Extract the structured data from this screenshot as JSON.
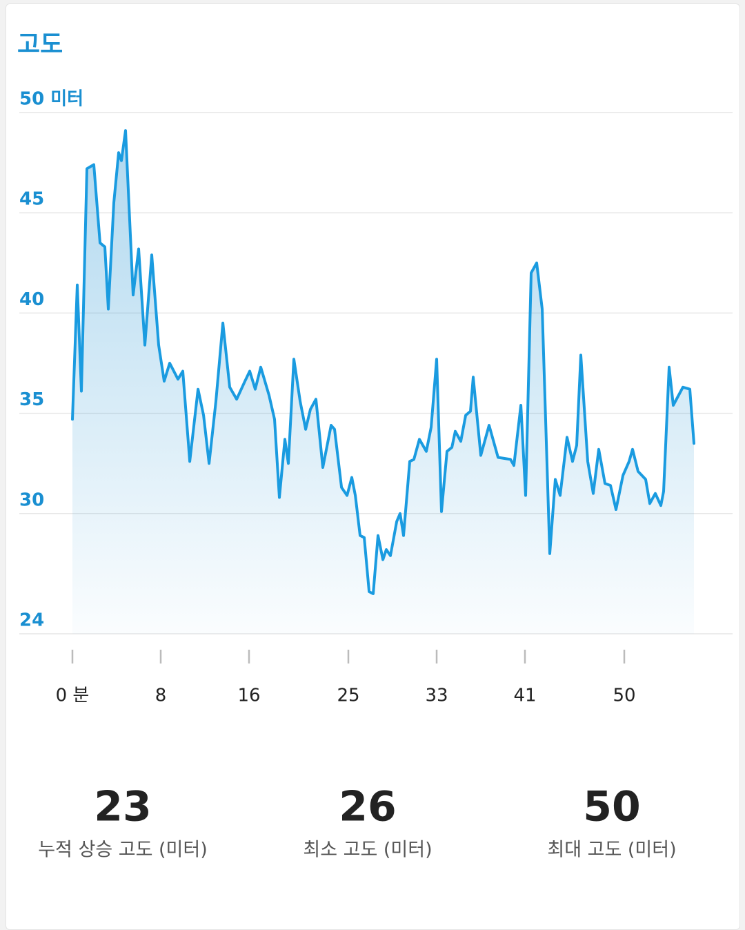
{
  "chart_data": {
    "type": "area",
    "title": "고도",
    "x": [
      0,
      0.44,
      0.81,
      1.31,
      1.94,
      2.5,
      2.94,
      3.25,
      3.75,
      4.19,
      4.44,
      4.81,
      5.5,
      6.0,
      6.56,
      7.19,
      7.81,
      8.31,
      8.81,
      9.56,
      10.0,
      10.63,
      11.38,
      11.88,
      12.38,
      13.0,
      13.63,
      14.25,
      14.88,
      15.63,
      16.06,
      16.56,
      17.06,
      17.81,
      18.31,
      18.75,
      19.25,
      19.56,
      20.06,
      20.63,
      21.13,
      21.56,
      22.06,
      22.69,
      23.44,
      23.75,
      24.38,
      24.88,
      25.31,
      25.63,
      26.06,
      26.44,
      26.88,
      27.25,
      27.69,
      28.13,
      28.44,
      28.81,
      29.38,
      29.69,
      30.0,
      30.56,
      30.94,
      31.44,
      32.06,
      32.5,
      33.0,
      33.44,
      33.94,
      34.38,
      34.69,
      35.19,
      35.63,
      36.06,
      36.31,
      37.0,
      37.75,
      38.56,
      39.69,
      40.0,
      40.63,
      41.06,
      41.56,
      42.06,
      42.56,
      43.25,
      43.75,
      44.19,
      44.81,
      45.31,
      45.69,
      46.06,
      46.69,
      47.19,
      47.69,
      48.25,
      48.75,
      49.25,
      49.88,
      50.44,
      50.75,
      51.25,
      51.94,
      52.31,
      52.81,
      53.31,
      53.56,
      54.06,
      54.44,
      55.31,
      55.94,
      56.31
    ],
    "values": [
      34.7,
      41.4,
      36.1,
      47.2,
      47.4,
      43.5,
      43.3,
      40.2,
      45.5,
      48.0,
      47.6,
      49.1,
      40.9,
      43.2,
      38.4,
      42.9,
      38.4,
      36.6,
      37.5,
      36.7,
      37.1,
      32.6,
      36.2,
      34.9,
      32.5,
      35.6,
      39.5,
      36.3,
      35.7,
      36.6,
      37.1,
      36.2,
      37.3,
      35.9,
      34.7,
      30.8,
      33.7,
      32.5,
      37.7,
      35.6,
      34.2,
      35.2,
      35.7,
      32.3,
      34.4,
      34.2,
      31.3,
      30.9,
      31.8,
      30.9,
      28.9,
      28.8,
      26.1,
      26.0,
      28.9,
      27.7,
      28.2,
      27.9,
      29.6,
      30.0,
      28.9,
      32.6,
      32.7,
      33.7,
      33.1,
      34.3,
      37.7,
      30.1,
      33.1,
      33.3,
      34.1,
      33.6,
      34.9,
      35.1,
      36.8,
      32.9,
      34.4,
      32.8,
      32.7,
      32.4,
      35.4,
      30.9,
      42.0,
      42.5,
      40.2,
      28.0,
      31.7,
      30.9,
      33.8,
      32.6,
      33.4,
      37.9,
      32.6,
      31.0,
      33.2,
      31.5,
      31.4,
      30.2,
      31.9,
      32.6,
      33.2,
      32.1,
      31.7,
      30.5,
      31.0,
      30.4,
      31.1,
      37.3,
      35.4,
      36.3,
      36.2,
      33.5
    ],
    "color": "#1a9be0",
    "xlim": [
      0,
      56.4
    ],
    "xticks": [
      {
        "value": 0,
        "label": "0 분"
      },
      8,
      16,
      25,
      33,
      41,
      50
    ],
    "ylim": [
      24,
      50
    ],
    "yticks": [
      24,
      30,
      35,
      40,
      45,
      {
        "value": 50,
        "label": "50 미터"
      }
    ],
    "grid": true
  },
  "stats": [
    {
      "value": "23",
      "label": "누적 상승 고도 (미터)"
    },
    {
      "value": "26",
      "label": "최소 고도 (미터)"
    },
    {
      "value": "50",
      "label": "최대 고도 (미터)"
    }
  ]
}
